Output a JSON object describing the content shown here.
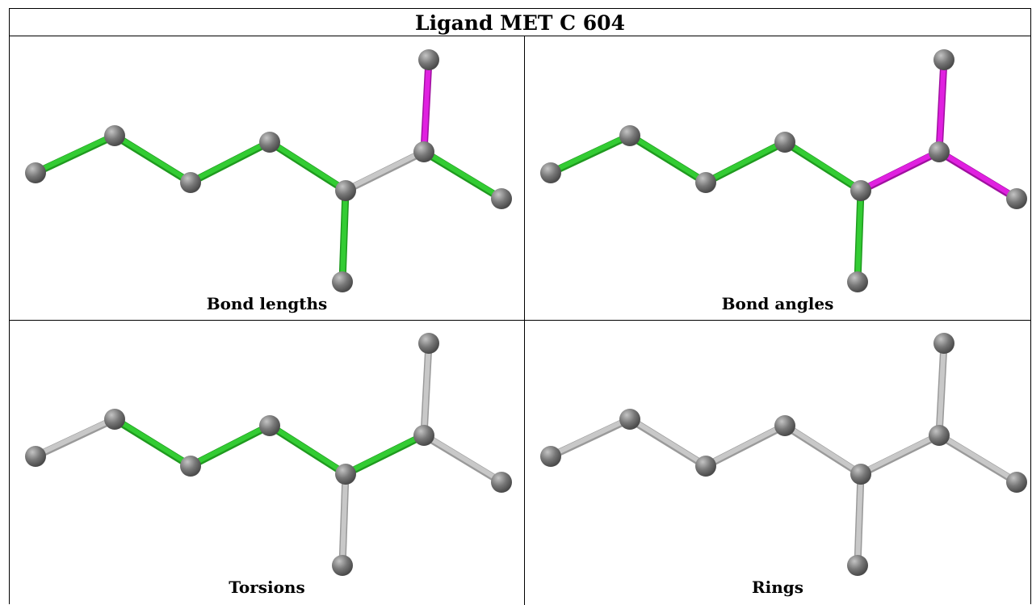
{
  "title": "Ligand MET C 604",
  "panels": [
    {
      "caption": "Bond lengths",
      "bond_colors": [
        "green",
        "green",
        "green",
        "green",
        "gray",
        "green",
        "magenta",
        "green"
      ]
    },
    {
      "caption": "Bond angles",
      "bond_colors": [
        "green",
        "green",
        "green",
        "green",
        "magenta",
        "green",
        "magenta",
        "magenta"
      ]
    },
    {
      "caption": "Torsions",
      "bond_colors": [
        "gray",
        "green",
        "green",
        "green",
        "green",
        "gray",
        "gray",
        "gray"
      ]
    },
    {
      "caption": "Rings",
      "bond_colors": [
        "gray",
        "gray",
        "gray",
        "gray",
        "gray",
        "gray",
        "gray",
        "gray"
      ]
    }
  ],
  "colors": {
    "green": "#33cc33",
    "magenta": "#e020e0",
    "gray": "#c8c8c8",
    "atom": "#777777"
  }
}
